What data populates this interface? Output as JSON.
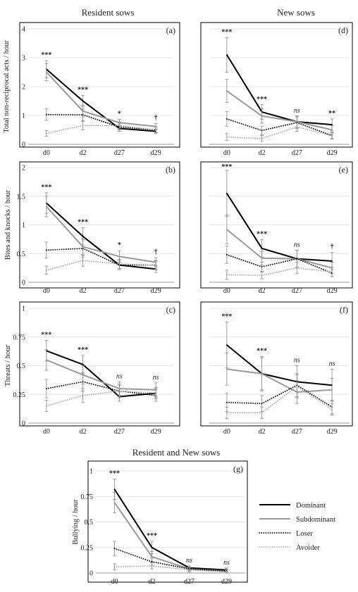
{
  "column_titles": [
    "Resident sows",
    "New sows"
  ],
  "bottom_title": "Resident and New sows",
  "categories": [
    "d0",
    "d2",
    "d27",
    "d29"
  ],
  "legend": [
    {
      "name": "Dominant",
      "color": "#000000",
      "dash": "solid",
      "width": 2
    },
    {
      "name": "Subdominant",
      "color": "#999999",
      "dash": "solid",
      "width": 2
    },
    {
      "name": "Loser",
      "color": "#000000",
      "dash": "dot",
      "width": 1.8
    },
    {
      "name": "Avoider",
      "color": "#999999",
      "dash": "dot",
      "width": 1.6
    }
  ],
  "chart_data": [
    {
      "panel": "(a)",
      "type": "line",
      "ylabel": "Total non-reciprocal acts  / hour",
      "ylim": [
        0,
        4
      ],
      "yticks": [
        "0",
        "1",
        "2",
        "3",
        "4"
      ],
      "ytick_values": [
        0,
        1,
        2,
        3,
        4
      ],
      "categories": [
        "d0",
        "d2",
        "d27",
        "d29"
      ],
      "series": [
        {
          "name": "Dominant",
          "values": [
            2.6,
            1.5,
            0.55,
            0.45
          ],
          "errors": [
            0.3,
            0.2,
            0.1,
            0.08
          ]
        },
        {
          "name": "Subdominant",
          "values": [
            2.5,
            1.15,
            0.75,
            0.62
          ],
          "errors": [
            0.3,
            0.2,
            0.12,
            0.1
          ]
        },
        {
          "name": "Loser",
          "values": [
            1.03,
            1.02,
            0.6,
            0.5
          ],
          "errors": [
            0.2,
            0.2,
            0.1,
            0.1
          ]
        },
        {
          "name": "Avoider",
          "values": [
            0.38,
            0.65,
            0.65,
            0.5
          ],
          "errors": [
            0.1,
            0.15,
            0.12,
            0.1
          ]
        }
      ],
      "significance": [
        "***",
        "***",
        "*",
        "†"
      ]
    },
    {
      "panel": "(d)",
      "type": "line",
      "ylabel": "",
      "ylim": [
        0,
        4
      ],
      "yticks": [],
      "ytick_values": [
        0,
        1,
        2,
        3,
        4
      ],
      "categories": [
        "d0",
        "d2",
        "d27",
        "d29"
      ],
      "series": [
        {
          "name": "Dominant",
          "values": [
            3.1,
            1.12,
            0.78,
            0.68
          ],
          "errors": [
            0.6,
            0.25,
            0.2,
            0.2
          ]
        },
        {
          "name": "Subdominant",
          "values": [
            1.85,
            0.98,
            0.78,
            0.5
          ],
          "errors": [
            0.4,
            0.25,
            0.2,
            0.15
          ]
        },
        {
          "name": "Loser",
          "values": [
            0.88,
            0.48,
            0.75,
            0.3
          ],
          "errors": [
            0.25,
            0.15,
            0.2,
            0.1
          ]
        },
        {
          "name": "Avoider",
          "values": [
            0.25,
            0.2,
            0.6,
            0.3
          ],
          "errors": [
            0.12,
            0.1,
            0.15,
            0.12
          ]
        }
      ],
      "significance": [
        "***",
        "***",
        "ns",
        "**"
      ]
    },
    {
      "panel": "(b)",
      "type": "line",
      "ylabel": "Bites and knocks  / hour",
      "ylim": [
        0,
        2
      ],
      "yticks": [
        "0",
        "0.5",
        "1",
        "1.5",
        "2"
      ],
      "ytick_values": [
        0,
        0.5,
        1,
        1.5,
        2
      ],
      "categories": [
        "d0",
        "d2",
        "d27",
        "d29"
      ],
      "series": [
        {
          "name": "Dominant",
          "values": [
            1.38,
            0.8,
            0.3,
            0.23
          ],
          "errors": [
            0.18,
            0.15,
            0.08,
            0.06
          ]
        },
        {
          "name": "Subdominant",
          "values": [
            1.32,
            0.62,
            0.45,
            0.35
          ],
          "errors": [
            0.18,
            0.15,
            0.1,
            0.08
          ]
        },
        {
          "name": "Loser",
          "values": [
            0.56,
            0.59,
            0.3,
            0.3
          ],
          "errors": [
            0.14,
            0.15,
            0.08,
            0.08
          ]
        },
        {
          "name": "Avoider",
          "values": [
            0.21,
            0.38,
            0.32,
            0.3
          ],
          "errors": [
            0.07,
            0.1,
            0.08,
            0.07
          ]
        }
      ],
      "significance": [
        "***",
        "***",
        "*",
        "†"
      ]
    },
    {
      "panel": "(e)",
      "type": "line",
      "ylabel": "",
      "ylim": [
        0,
        2
      ],
      "yticks": [],
      "ytick_values": [
        0,
        0.5,
        1,
        1.5,
        2
      ],
      "categories": [
        "d0",
        "d2",
        "d27",
        "d29"
      ],
      "series": [
        {
          "name": "Dominant",
          "values": [
            1.55,
            0.59,
            0.41,
            0.37
          ],
          "errors": [
            0.4,
            0.15,
            0.15,
            0.15
          ]
        },
        {
          "name": "Subdominant",
          "values": [
            0.92,
            0.42,
            0.41,
            0.25
          ],
          "errors": [
            0.25,
            0.12,
            0.15,
            0.1
          ]
        },
        {
          "name": "Loser",
          "values": [
            0.48,
            0.27,
            0.41,
            0.16
          ],
          "errors": [
            0.15,
            0.08,
            0.15,
            0.06
          ]
        },
        {
          "name": "Avoider",
          "values": [
            0.13,
            0.12,
            0.25,
            0.18
          ],
          "errors": [
            0.08,
            0.06,
            0.1,
            0.08
          ]
        }
      ],
      "significance": [
        "***",
        "***",
        "ns",
        "†"
      ]
    },
    {
      "panel": "(c)",
      "type": "line",
      "ylabel": "Threats  / hour",
      "ylim": [
        0,
        1
      ],
      "yticks": [
        "0",
        "0.25",
        "0.5",
        "0.75",
        "1"
      ],
      "ytick_values": [
        0,
        0.25,
        0.5,
        0.75,
        1
      ],
      "categories": [
        "d0",
        "d2",
        "d27",
        "d29"
      ],
      "series": [
        {
          "name": "Dominant",
          "values": [
            0.63,
            0.51,
            0.23,
            0.26
          ],
          "errors": [
            0.09,
            0.08,
            0.04,
            0.04
          ]
        },
        {
          "name": "Subdominant",
          "values": [
            0.55,
            0.42,
            0.3,
            0.29
          ],
          "errors": [
            0.09,
            0.08,
            0.06,
            0.06
          ]
        },
        {
          "name": "Loser",
          "values": [
            0.3,
            0.36,
            0.28,
            0.24
          ],
          "errors": [
            0.08,
            0.08,
            0.05,
            0.05
          ]
        },
        {
          "name": "Avoider",
          "values": [
            0.15,
            0.24,
            0.28,
            0.26
          ],
          "errors": [
            0.05,
            0.06,
            0.06,
            0.05
          ]
        }
      ],
      "significance": [
        "***",
        "***",
        "ns",
        "ns"
      ]
    },
    {
      "panel": "(f)",
      "type": "line",
      "ylabel": "",
      "ylim": [
        0,
        1
      ],
      "yticks": [],
      "ytick_values": [
        0,
        0.25,
        0.5,
        0.75,
        1
      ],
      "categories": [
        "d0",
        "d2",
        "d27",
        "d29"
      ],
      "series": [
        {
          "name": "Dominant",
          "values": [
            0.68,
            0.43,
            0.36,
            0.33
          ],
          "errors": [
            0.2,
            0.15,
            0.14,
            0.14
          ]
        },
        {
          "name": "Subdominant",
          "values": [
            0.47,
            0.43,
            0.27,
            0.29
          ],
          "errors": [
            0.14,
            0.14,
            0.1,
            0.1
          ]
        },
        {
          "name": "Loser",
          "values": [
            0.18,
            0.17,
            0.33,
            0.14
          ],
          "errors": [
            0.08,
            0.07,
            0.1,
            0.06
          ]
        },
        {
          "name": "Avoider",
          "values": [
            0.09,
            0.09,
            0.32,
            0.12
          ],
          "errors": [
            0.05,
            0.05,
            0.1,
            0.05
          ]
        }
      ],
      "significance": [
        "***",
        "***",
        "ns",
        "ns"
      ]
    },
    {
      "panel": "(g)",
      "type": "line",
      "ylabel": "Bullying  / hour",
      "ylim": [
        0,
        1
      ],
      "yticks": [
        "0",
        "0.25",
        "0.5",
        "0.75",
        "1"
      ],
      "ytick_values": [
        0,
        0.25,
        0.5,
        0.75,
        1
      ],
      "categories": [
        "d0",
        "d2",
        "d27",
        "d29"
      ],
      "series": [
        {
          "name": "Dominant",
          "values": [
            0.82,
            0.25,
            0.05,
            0.03
          ],
          "errors": [
            0.1,
            0.06,
            0.02,
            0.02
          ]
        },
        {
          "name": "Subdominant",
          "values": [
            0.69,
            0.16,
            0.04,
            0.02
          ],
          "errors": [
            0.1,
            0.05,
            0.02,
            0.02
          ]
        },
        {
          "name": "Loser",
          "values": [
            0.24,
            0.11,
            0.04,
            0.02
          ],
          "errors": [
            0.07,
            0.04,
            0.02,
            0.01
          ]
        },
        {
          "name": "Avoider",
          "values": [
            0.06,
            0.07,
            0.03,
            0.01
          ],
          "errors": [
            0.03,
            0.03,
            0.02,
            0.01
          ]
        }
      ],
      "significance": [
        "***",
        "***",
        "ns",
        "ns"
      ]
    }
  ]
}
